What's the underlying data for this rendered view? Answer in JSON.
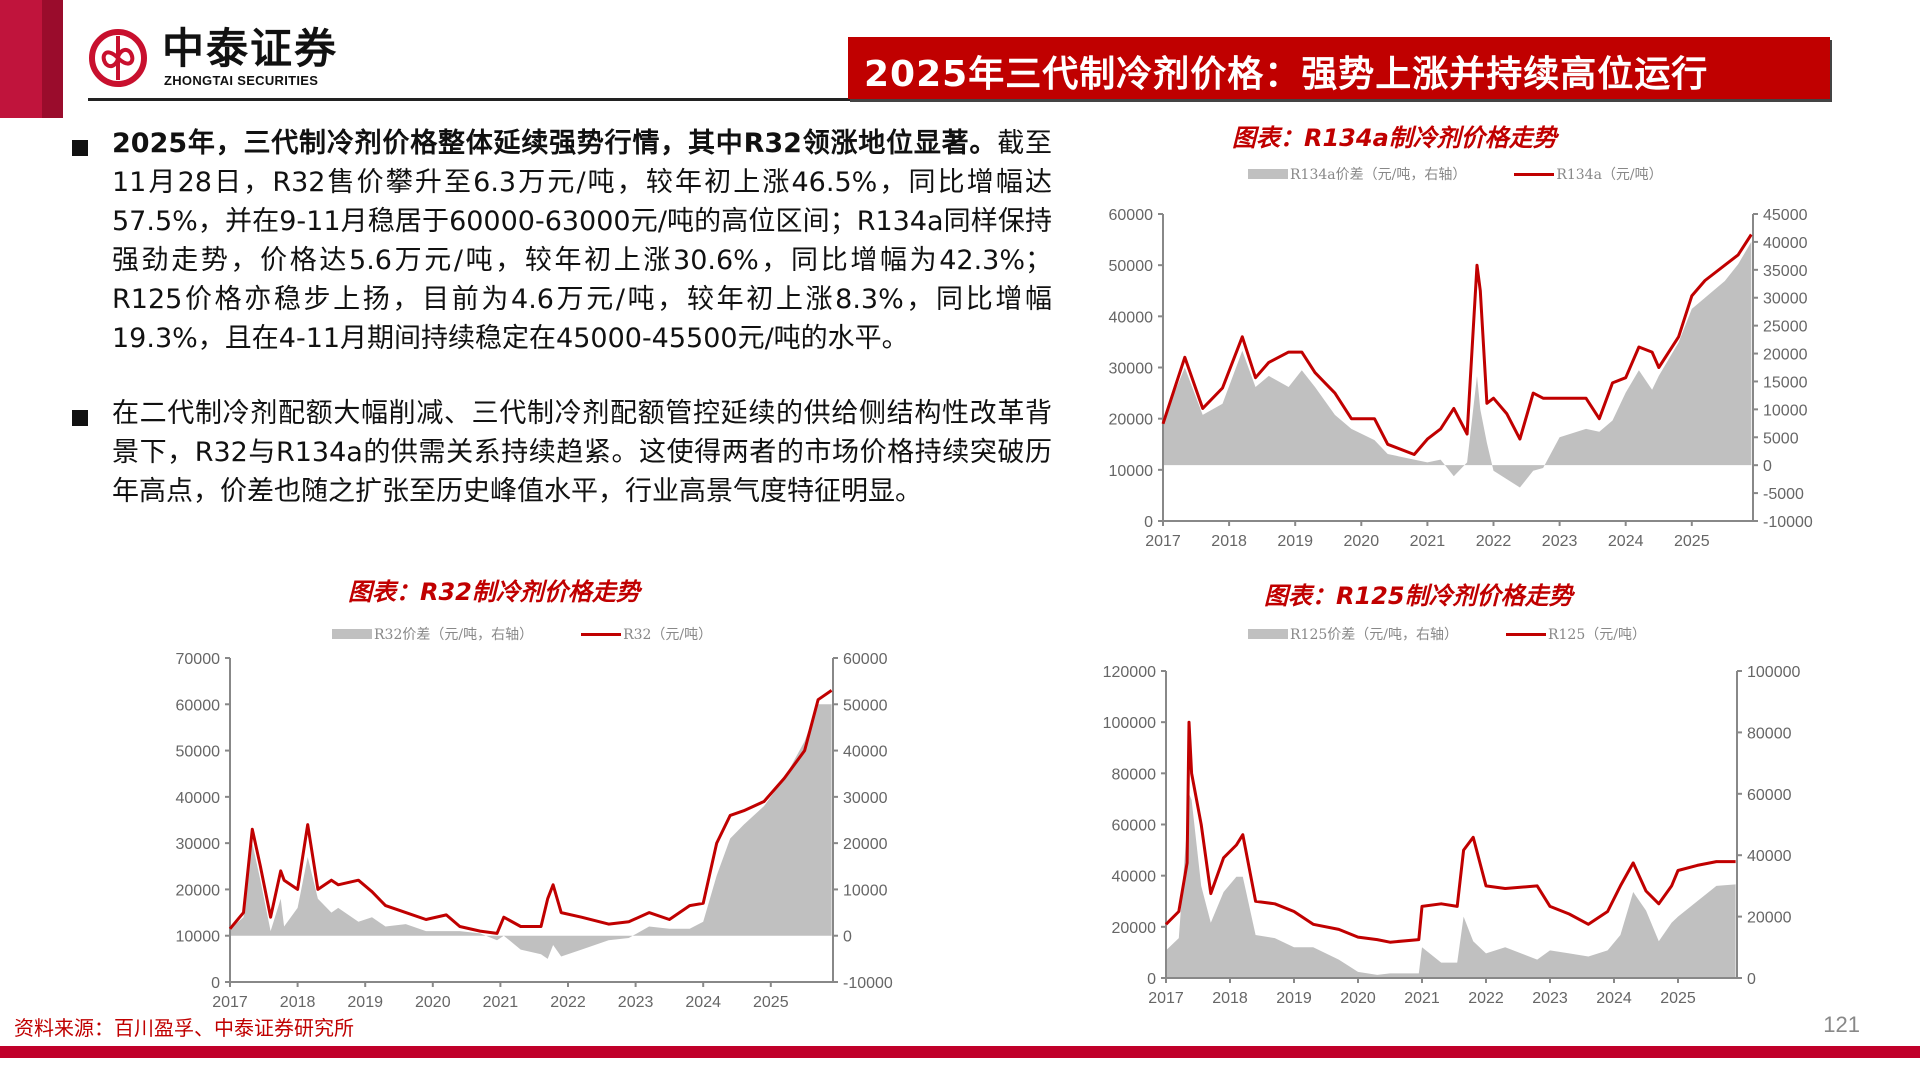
{
  "header": {
    "brand_cn": "中泰证券",
    "brand_en": "ZHONGTAI SECURITIES",
    "title": "2025年三代制冷剂价格：强势上涨并持续高位运行",
    "colors": {
      "brand_red": "#c00000",
      "left_bar": "#c0143c",
      "left_bar_dark": "#9a0c2c"
    }
  },
  "body": {
    "bullet1_bold": "2025年，三代制冷剂价格整体延续强势行情，其中R32领涨地位显著。",
    "bullet1_rest": "截至11月28日，R32售价攀升至6.3万元/吨，较年初上涨46.5%，同比增幅达57.5%，并在9-11月稳居于60000-63000元/吨的高位区间；R134a同样保持强劲走势，价格达5.6万元/吨，较年初上涨30.6%，同比增幅为42.3%；R125价格亦稳步上扬，目前为4.6万元/吨，较年初上涨8.3%，同比增幅19.3%，且在4-11月期间持续稳定在45000-45500元/吨的水平。",
    "bullet2": "在二代制冷剂配额大幅削减、三代制冷剂配额管控延续的供给侧结构性改革背景下，R32与R134a的供需关系持续趋紧。这使得两者的市场价格持续突破历年高点，价差也随之扩张至历史峰值水平，行业高景气度特征明显。"
  },
  "footer": {
    "source": "资料来源：百川盈孚、中泰证券研究所",
    "page": "121"
  },
  "chart_data": [
    {
      "id": "r134a",
      "type": "line",
      "title": "图表：R134a制冷剂价格走势",
      "x": [
        2017,
        2017.33,
        2017.6,
        2017.9,
        2018.2,
        2018.4,
        2018.6,
        2018.9,
        2019.1,
        2019.3,
        2019.6,
        2019.85,
        2020.2,
        2020.4,
        2020.8,
        2021.0,
        2021.2,
        2021.4,
        2021.6,
        2021.75,
        2021.8,
        2021.9,
        2022.0,
        2022.2,
        2022.4,
        2022.6,
        2022.75,
        2023.0,
        2023.4,
        2023.6,
        2023.8,
        2024.0,
        2024.2,
        2024.4,
        2024.5,
        2024.8,
        2025.0,
        2025.2,
        2025.5,
        2025.7,
        2025.9
      ],
      "categories": [
        "2017",
        "2018",
        "2019",
        "2020",
        "2021",
        "2022",
        "2023",
        "2024",
        "2025"
      ],
      "series": [
        {
          "name": "R134a价差（元/吨，右轴）",
          "axis": "right",
          "kind": "area",
          "values": [
            8000,
            17500,
            9000,
            11000,
            20500,
            14000,
            16000,
            14000,
            17000,
            14000,
            9000,
            6500,
            4500,
            2000,
            1000,
            500,
            1000,
            -2000,
            500,
            16000,
            10000,
            4000,
            -1000,
            -2500,
            -4000,
            -1000,
            -500,
            5000,
            6500,
            6000,
            8000,
            13000,
            17000,
            13500,
            16000,
            22000,
            28000,
            30000,
            33000,
            36000,
            40000
          ]
        },
        {
          "name": "R134a（元/吨）",
          "axis": "left",
          "kind": "line",
          "values": [
            19000,
            32000,
            22000,
            26000,
            36000,
            28000,
            31000,
            33000,
            33000,
            29000,
            25000,
            20000,
            20000,
            15000,
            13000,
            16000,
            18000,
            22000,
            17000,
            50000,
            45000,
            23000,
            24000,
            21000,
            16000,
            25000,
            24000,
            24000,
            24000,
            20000,
            27000,
            28000,
            34000,
            33000,
            30000,
            36000,
            44000,
            47000,
            50000,
            52000,
            56000
          ]
        }
      ],
      "left_axis": {
        "min": 0,
        "max": 60000,
        "ticks": [
          0,
          10000,
          20000,
          30000,
          40000,
          50000,
          60000
        ]
      },
      "right_axis": {
        "min": -10000,
        "max": 45000,
        "ticks": [
          -10000,
          -5000,
          0,
          5000,
          10000,
          15000,
          20000,
          25000,
          30000,
          35000,
          40000,
          45000
        ]
      }
    },
    {
      "id": "r32",
      "type": "line",
      "title": "图表：R32制冷剂价格走势",
      "x": [
        2017,
        2017.2,
        2017.33,
        2017.45,
        2017.6,
        2017.75,
        2017.8,
        2018.0,
        2018.15,
        2018.3,
        2018.5,
        2018.6,
        2018.9,
        2019.1,
        2019.3,
        2019.6,
        2019.9,
        2020.2,
        2020.4,
        2020.7,
        2020.95,
        2021.05,
        2021.3,
        2021.6,
        2021.7,
        2021.78,
        2021.9,
        2022.2,
        2022.6,
        2022.9,
        2023.2,
        2023.5,
        2023.8,
        2024.0,
        2024.2,
        2024.4,
        2024.6,
        2024.9,
        2025.2,
        2025.5,
        2025.7,
        2025.9
      ],
      "categories": [
        "2017",
        "2018",
        "2019",
        "2020",
        "2021",
        "2022",
        "2023",
        "2024",
        "2025"
      ],
      "series": [
        {
          "name": "R32价差（元/吨，右轴）",
          "axis": "right",
          "kind": "area",
          "values": [
            1500,
            4000,
            20000,
            12000,
            1000,
            8000,
            2000,
            6000,
            17000,
            8000,
            5000,
            6000,
            3000,
            4000,
            2000,
            2500,
            1000,
            1000,
            1000,
            500,
            -1000,
            0,
            -3000,
            -4000,
            -5000,
            -2000,
            -4500,
            -3000,
            -1000,
            -500,
            2000,
            1500,
            1500,
            3000,
            13000,
            21000,
            24000,
            28000,
            34000,
            42000,
            50000,
            50000
          ]
        },
        {
          "name": "R32（元/吨）",
          "axis": "left",
          "kind": "line",
          "values": [
            11500,
            15000,
            33000,
            25000,
            14000,
            24000,
            22000,
            20000,
            34000,
            20000,
            22000,
            21000,
            22000,
            19500,
            16500,
            15000,
            13500,
            14500,
            12000,
            11000,
            10500,
            14000,
            12000,
            12000,
            18000,
            21000,
            15000,
            14000,
            12500,
            13000,
            15000,
            13500,
            16500,
            17000,
            30000,
            36000,
            37000,
            39000,
            44000,
            50000,
            61000,
            63000
          ]
        }
      ],
      "left_axis": {
        "min": 0,
        "max": 70000,
        "ticks": [
          0,
          10000,
          20000,
          30000,
          40000,
          50000,
          60000,
          70000
        ]
      },
      "right_axis": {
        "min": -10000,
        "max": 60000,
        "ticks": [
          -10000,
          0,
          10000,
          20000,
          30000,
          40000,
          50000,
          60000
        ]
      }
    },
    {
      "id": "r125",
      "type": "line",
      "title": "图表：R125制冷剂价格走势",
      "x": [
        2017,
        2017.2,
        2017.33,
        2017.36,
        2017.4,
        2017.55,
        2017.7,
        2017.9,
        2018.1,
        2018.2,
        2018.4,
        2018.7,
        2019.0,
        2019.3,
        2019.7,
        2020.0,
        2020.3,
        2020.5,
        2020.95,
        2021.0,
        2021.3,
        2021.55,
        2021.65,
        2021.8,
        2022.0,
        2022.3,
        2022.8,
        2023.0,
        2023.3,
        2023.6,
        2023.9,
        2024.1,
        2024.3,
        2024.5,
        2024.7,
        2024.9,
        2025.0,
        2025.3,
        2025.6,
        2025.9
      ],
      "categories": [
        "2017",
        "2018",
        "2019",
        "2020",
        "2021",
        "2022",
        "2023",
        "2024",
        "2025"
      ],
      "series": [
        {
          "name": "R125价差（元/吨，右轴）",
          "axis": "right",
          "kind": "area",
          "values": [
            9000,
            13000,
            50000,
            60000,
            58000,
            30000,
            18000,
            28000,
            33000,
            33000,
            14000,
            13000,
            10000,
            10000,
            6000,
            2000,
            1000,
            1500,
            1500,
            10000,
            5000,
            5000,
            20000,
            12000,
            8000,
            10000,
            6000,
            9000,
            8000,
            7000,
            9000,
            14000,
            28000,
            22000,
            12000,
            18000,
            20000,
            25000,
            30000,
            30500
          ]
        },
        {
          "name": "R125（元/吨）",
          "axis": "left",
          "kind": "line",
          "values": [
            21000,
            26000,
            45000,
            100000,
            80000,
            60000,
            33000,
            47000,
            52000,
            56000,
            30000,
            29000,
            26000,
            21000,
            19000,
            16000,
            15000,
            14000,
            15000,
            28000,
            29000,
            28000,
            50000,
            55000,
            36000,
            35000,
            36000,
            28000,
            25000,
            21000,
            26000,
            36000,
            45000,
            34000,
            29000,
            36000,
            42000,
            44000,
            45500,
            45500
          ]
        }
      ],
      "left_axis": {
        "min": 0,
        "max": 120000,
        "ticks": [
          0,
          20000,
          40000,
          60000,
          80000,
          100000,
          120000
        ]
      },
      "right_axis": {
        "min": 0,
        "max": 100000,
        "ticks": [
          0,
          20000,
          40000,
          60000,
          80000,
          100000
        ]
      }
    }
  ]
}
